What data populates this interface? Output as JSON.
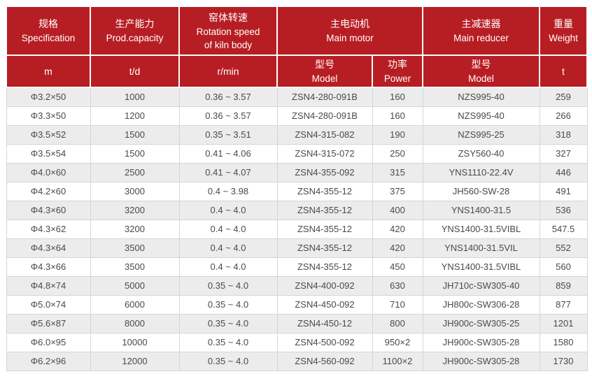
{
  "colors": {
    "header_bg": "#b71e24",
    "header_text": "#ffffff",
    "row_alt_bg": "#ececec",
    "row_bg": "#ffffff",
    "border": "#d5d5d5",
    "cell_text": "#4a4a4a"
  },
  "chart_data": {
    "type": "table",
    "header_groups": [
      {
        "zh": "规格",
        "en": "Specification"
      },
      {
        "zh": "生产能力",
        "en": "Prod.capacity"
      },
      {
        "zh": "窑体转速",
        "en": "Rotation speed of kiln body"
      },
      {
        "zh": "主电动机",
        "en": "Main motor"
      },
      {
        "zh": "主减速器",
        "en": "Main reducer"
      },
      {
        "zh": "重量",
        "en": "Weight"
      }
    ],
    "subheader": [
      {
        "line1": "m",
        "line2": ""
      },
      {
        "line1": "t/d",
        "line2": ""
      },
      {
        "line1": "r/min",
        "line2": ""
      },
      {
        "line1": "型号",
        "line2": "Model"
      },
      {
        "line1": "功率",
        "line2": "Power"
      },
      {
        "line1": "型号",
        "line2": "Model"
      },
      {
        "line1": "t",
        "line2": ""
      }
    ],
    "rows": [
      [
        "Φ3.2×50",
        "1000",
        "0.36 ~ 3.57",
        "ZSN4-280-091B",
        "160",
        "NZS995-40",
        "259"
      ],
      [
        "Φ3.3×50",
        "1200",
        "0.36 ~ 3.57",
        "ZSN4-280-091B",
        "160",
        "NZS995-40",
        "266"
      ],
      [
        "Φ3.5×52",
        "1500",
        "0.35 ~ 3.51",
        "ZSN4-315-082",
        "190",
        "NZS995-25",
        "318"
      ],
      [
        "Φ3.5×54",
        "1500",
        "0.41 ~ 4.06",
        "ZSN4-315-072",
        "250",
        "ZSY560-40",
        "327"
      ],
      [
        "Φ4.0×60",
        "2500",
        "0.41 ~ 4.07",
        "ZSN4-355-092",
        "315",
        "YNS1110-22.4V",
        "446"
      ],
      [
        "Φ4.2×60",
        "3000",
        "0.4 ~ 3.98",
        "ZSN4-355-12",
        "375",
        "JH560-SW-28",
        "491"
      ],
      [
        "Φ4.3×60",
        "3200",
        "0.4 ~ 4.0",
        "ZSN4-355-12",
        "400",
        "YNS1400-31.5",
        "536"
      ],
      [
        "Φ4.3×62",
        "3200",
        "0.4 ~ 4.0",
        "ZSN4-355-12",
        "420",
        "YNS1400-31.5VIBL",
        "547.5"
      ],
      [
        "Φ4.3×64",
        "3500",
        "0.4 ~ 4.0",
        "ZSN4-355-12",
        "420",
        "YNS1400-31.5VIL",
        "552"
      ],
      [
        "Φ4.3×66",
        "3500",
        "0.4 ~ 4.0",
        "ZSN4-355-12",
        "450",
        "YNS1400-31.5VIBL",
        "560"
      ],
      [
        "Φ4.8×74",
        "5000",
        "0.35 ~ 4.0",
        "ZSN4-400-092",
        "630",
        "JH710c-SW305-40",
        "859"
      ],
      [
        "Φ5.0×74",
        "6000",
        "0.35 ~ 4.0",
        "ZSN4-450-092",
        "710",
        "JH800c-SW306-28",
        "877"
      ],
      [
        "Φ5.6×87",
        "8000",
        "0.35 ~ 4.0",
        "ZSN4-450-12",
        "800",
        "JH900c-SW305-25",
        "1201"
      ],
      [
        "Φ6.0×95",
        "10000",
        "0.35 ~ 4.0",
        "ZSN4-500-092",
        "950×2",
        "JH900c-SW305-28",
        "1580"
      ],
      [
        "Φ6.2×96",
        "12000",
        "0.35 ~ 4.0",
        "ZSN4-560-092",
        "1100×2",
        "JH900c-SW305-28",
        "1730"
      ]
    ]
  }
}
